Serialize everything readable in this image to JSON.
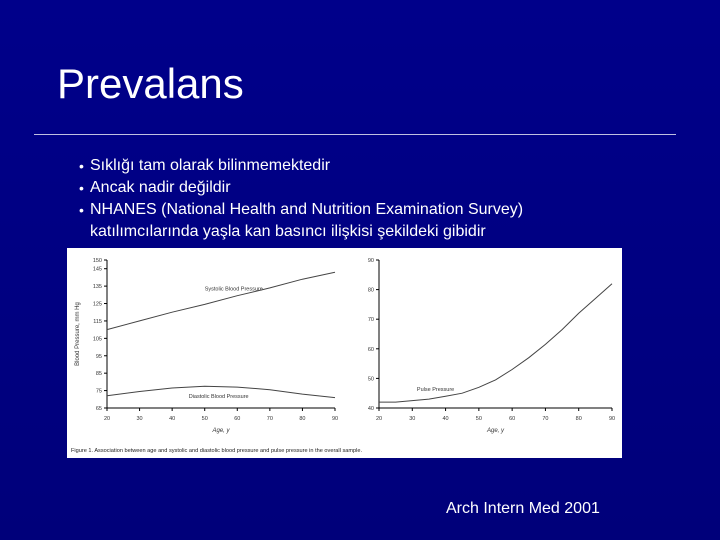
{
  "slide": {
    "title": "Prevalans",
    "bullets": [
      "Sıklığı tam olarak bilinmemektedir",
      "Ancak nadir değildir",
      "NHANES  (National Health and Nutrition Examination Survey)"
    ],
    "bullet_continuation": "katılımcılarında yaşla kan basıncı ilişkisi şekildeki gibidir",
    "citation": "Arch Intern Med 2001",
    "bullet_glyph": "•"
  },
  "colors": {
    "background": "#000080",
    "text": "#ffffff",
    "figure_bg": "#ffffff",
    "series_line": "#444444"
  },
  "chart_data": [
    {
      "type": "line",
      "x": [
        20,
        30,
        40,
        50,
        60,
        70,
        80,
        90
      ],
      "series": [
        {
          "name": "Systolic Blood Pressure",
          "values": [
            110,
            115,
            120,
            124.5,
            129.5,
            134,
            139,
            143
          ]
        },
        {
          "name": "Diastolic Blood Pressure",
          "values": [
            72,
            74.5,
            76.5,
            77.5,
            77,
            75.5,
            73,
            71
          ]
        }
      ],
      "xlabel": "Age, y",
      "ylabel": "Blood Pressure, mm Hg",
      "xlim": [
        20,
        90
      ],
      "ylim": [
        65,
        150
      ],
      "yticks": [
        65,
        75,
        85,
        95,
        105,
        115,
        125,
        135,
        145,
        150
      ],
      "xticks": [
        20,
        30,
        40,
        50,
        60,
        70,
        80,
        90
      ],
      "grid": false
    },
    {
      "type": "line",
      "x": [
        20,
        25,
        30,
        35,
        40,
        45,
        50,
        55,
        60,
        65,
        70,
        75,
        80,
        85,
        90
      ],
      "series": [
        {
          "name": "Pulse Pressure",
          "values": [
            42,
            42,
            42.5,
            43,
            44,
            45,
            47,
            49.5,
            53,
            57,
            61.5,
            66.5,
            72,
            77,
            82
          ]
        }
      ],
      "xlabel": "Age, y",
      "xlim": [
        20,
        90
      ],
      "ylim": [
        40,
        90
      ],
      "yticks": [
        40,
        50,
        60,
        70,
        80,
        90
      ],
      "xticks": [
        20,
        30,
        40,
        50,
        60,
        70,
        80,
        90
      ],
      "grid": false
    }
  ],
  "figure": {
    "caption": "Figure 1. Association between age and systolic and diastolic blood pressure and pulse pressure in the overall sample."
  }
}
